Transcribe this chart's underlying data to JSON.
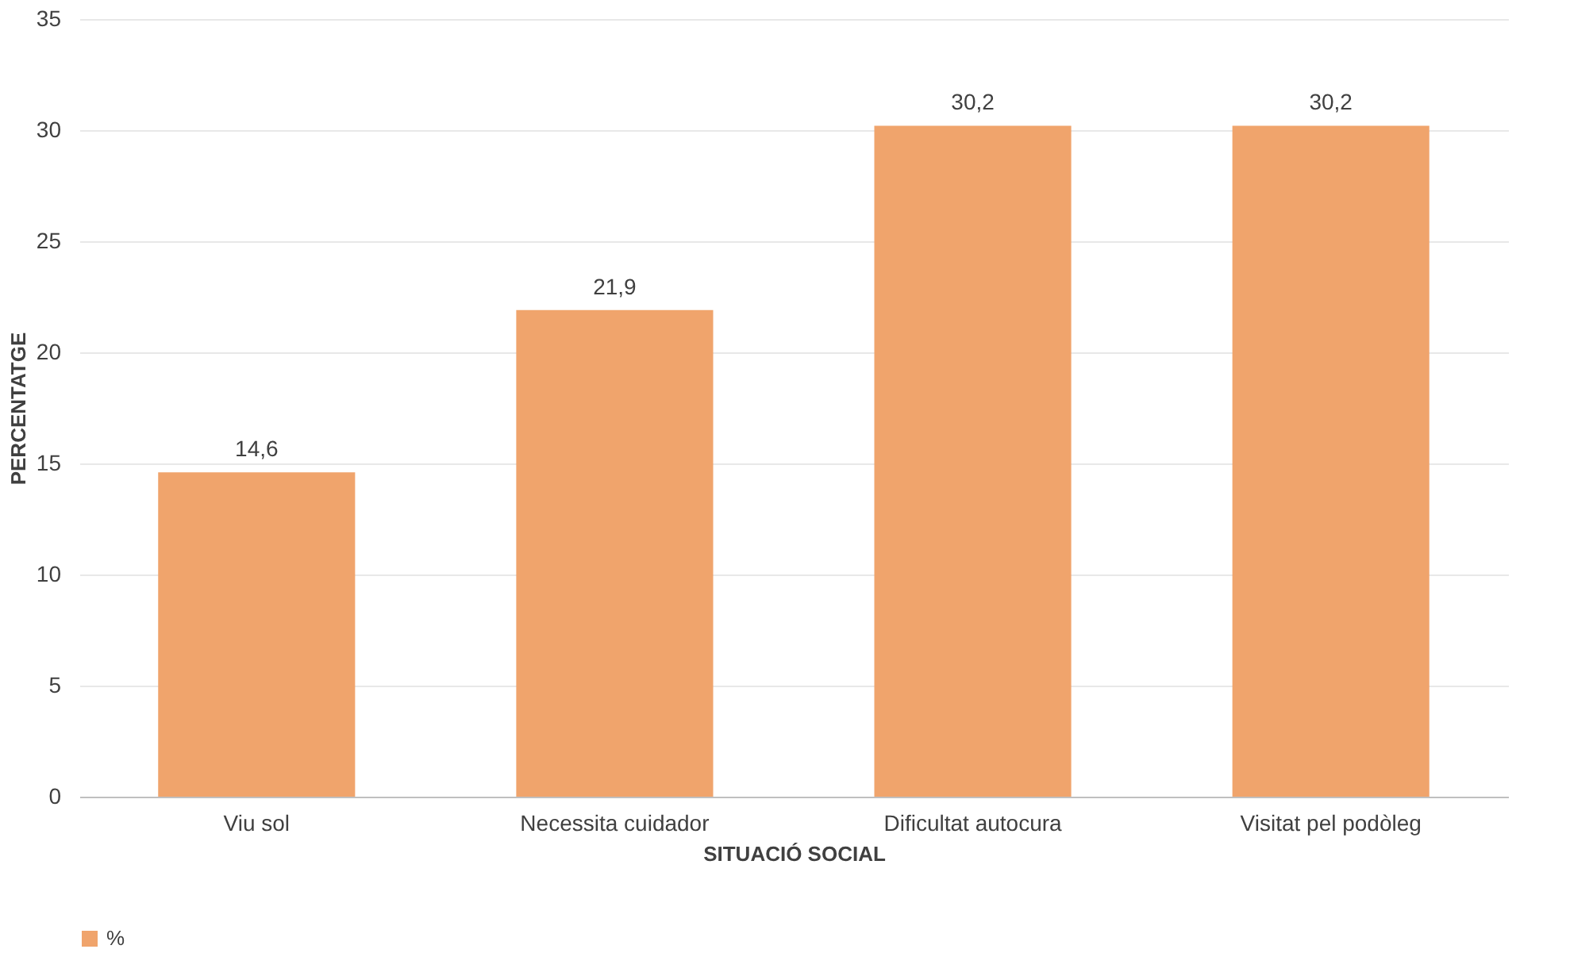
{
  "chart_data": {
    "type": "bar",
    "xlabel": "SITUACIÓ SOCIAL",
    "ylabel": "PERCENTATGE",
    "categories": [
      "Viu sol",
      "Necessita cuidador",
      "Dificultat autocura",
      "Visitat pel podòleg"
    ],
    "series": [
      {
        "name": "%",
        "color": "#f0a46c",
        "values": [
          14.6,
          21.9,
          30.2,
          30.2
        ]
      }
    ],
    "value_labels": [
      "14,6",
      "21,9",
      "30,2",
      "30,2"
    ],
    "ylim": [
      0,
      35
    ],
    "yticks": [
      0,
      5,
      10,
      15,
      20,
      25,
      30,
      35
    ],
    "grid": "y",
    "legend": "bottom"
  }
}
